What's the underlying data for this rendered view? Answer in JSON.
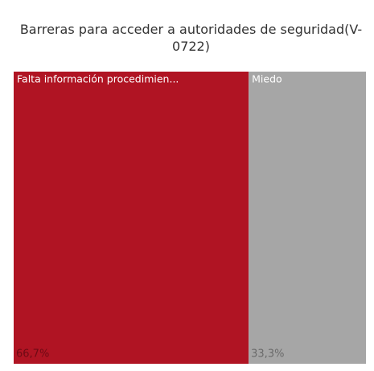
{
  "chart_data": {
    "type": "treemap",
    "title": "Barreras para acceder a autoridades de seguridad(V-0722)",
    "categories": [
      "Falta información procedimien...",
      "Miedo"
    ],
    "values": [
      66.7,
      33.3
    ],
    "value_labels": [
      "66,7%",
      "33,3%"
    ],
    "colors": [
      "#b01423",
      "#a6a6a6"
    ]
  }
}
